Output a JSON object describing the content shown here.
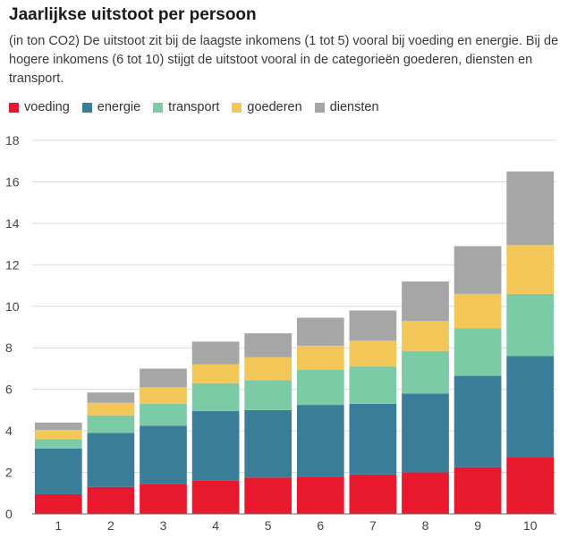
{
  "title": "Jaarlijkse uitstoot per persoon",
  "subtitle": "(in ton CO2) De uitstoot zit bij de laagste inkomens (1 tot 5) vooral bij voeding en energie. Bij de hogere inkomens (6 tot 10) stijgt de uitstoot vooral in de categorieën goederen, diensten en transport.",
  "chart_data": {
    "type": "bar",
    "stacked": true,
    "categories": [
      "1",
      "2",
      "3",
      "4",
      "5",
      "6",
      "7",
      "8",
      "9",
      "10"
    ],
    "ylim": [
      0,
      18
    ],
    "yticks": [
      "0",
      "2",
      "4",
      "6",
      "8",
      "10",
      "12",
      "14",
      "16",
      "18"
    ],
    "grid": true,
    "legend_position": "top-left",
    "series": [
      {
        "name": "voeding",
        "color": "#e8192c",
        "values": [
          0.95,
          1.3,
          1.45,
          1.6,
          1.75,
          1.8,
          1.9,
          2.0,
          2.25,
          2.75
        ]
      },
      {
        "name": "energie",
        "color": "#3a7d99",
        "values": [
          2.2,
          2.6,
          2.8,
          3.35,
          3.25,
          3.45,
          3.4,
          3.8,
          4.4,
          4.85
        ]
      },
      {
        "name": "transport",
        "color": "#7ccba7",
        "values": [
          0.45,
          0.85,
          1.05,
          1.35,
          1.45,
          1.7,
          1.8,
          2.05,
          2.3,
          3.0
        ]
      },
      {
        "name": "goederen",
        "color": "#f2c657",
        "values": [
          0.45,
          0.6,
          0.8,
          0.9,
          1.1,
          1.15,
          1.25,
          1.45,
          1.65,
          2.35
        ]
      },
      {
        "name": "diensten",
        "color": "#a6a6a6",
        "values": [
          0.35,
          0.5,
          0.9,
          1.1,
          1.15,
          1.35,
          1.45,
          1.9,
          2.3,
          3.55
        ]
      }
    ]
  }
}
